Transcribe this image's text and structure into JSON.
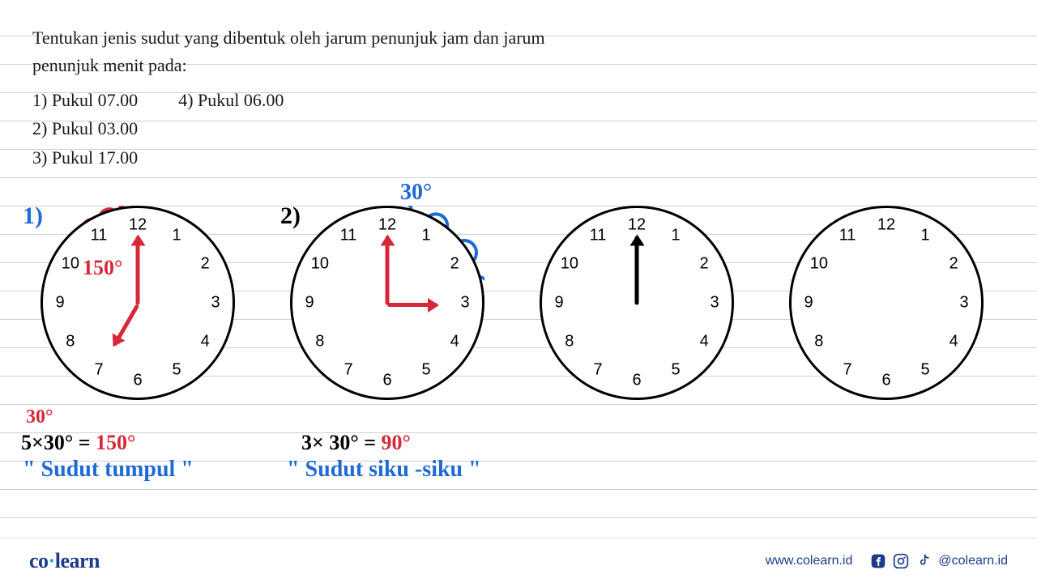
{
  "question": {
    "text_line1": "Tentukan jenis sudut yang dibentuk oleh jarum penunjuk jam dan jarum",
    "text_line2": "penunjuk menit pada:",
    "items_col1": [
      "1) Pukul 07.00",
      "2) Pukul 03.00",
      "3) Pukul 17.00"
    ],
    "items_col2": [
      "4) Pukul 06.00"
    ]
  },
  "clocks": {
    "face_radius": 120,
    "num_radius": 96,
    "border_color": "#000000",
    "numbers": [
      "12",
      "1",
      "2",
      "3",
      "4",
      "5",
      "6",
      "7",
      "8",
      "9",
      "10",
      "11"
    ],
    "clock1": {
      "hands": [
        {
          "angle_deg_from_12": 0,
          "length": 85,
          "color": "red"
        },
        {
          "angle_deg_from_12": 210,
          "length": 58,
          "color": "red"
        }
      ],
      "annotations": {
        "problem_label": "1)",
        "inside_angle": "150°",
        "outside_angle": "30°",
        "calc": "5×30° = 150°",
        "answer": "\" Sudut tumpul \""
      },
      "arc_color": "#d62839"
    },
    "clock2": {
      "hands": [
        {
          "angle_deg_from_12": 0,
          "length": 85,
          "color": "red"
        },
        {
          "angle_deg_from_12": 90,
          "length": 62,
          "color": "red"
        }
      ],
      "annotations": {
        "problem_label": "2)",
        "arc_label": "30°",
        "calc": "3× 30° = 90°",
        "answer": "\" Sudut siku -siku \""
      },
      "arc_color": "#1e6bd6"
    },
    "clock3": {
      "hands": [
        {
          "angle_deg_from_12": 0,
          "length": 85,
          "color": "black"
        }
      ]
    },
    "clock4": {
      "hands": []
    }
  },
  "footer": {
    "logo_main": "co",
    "logo_rest": "learn",
    "url": "www.colearn.id",
    "handle": "@colearn.id"
  },
  "colors": {
    "text": "#1a1a1a",
    "red_ink": "#d62839",
    "blue_ink": "#1e6bd6",
    "line": "#d0d0d0",
    "brand_blue": "#1b3a8a",
    "brand_cyan": "#1fa8e0"
  },
  "typography": {
    "question_fontsize": 22,
    "number_fontsize": 20,
    "handwriting_fontsize": 26
  }
}
